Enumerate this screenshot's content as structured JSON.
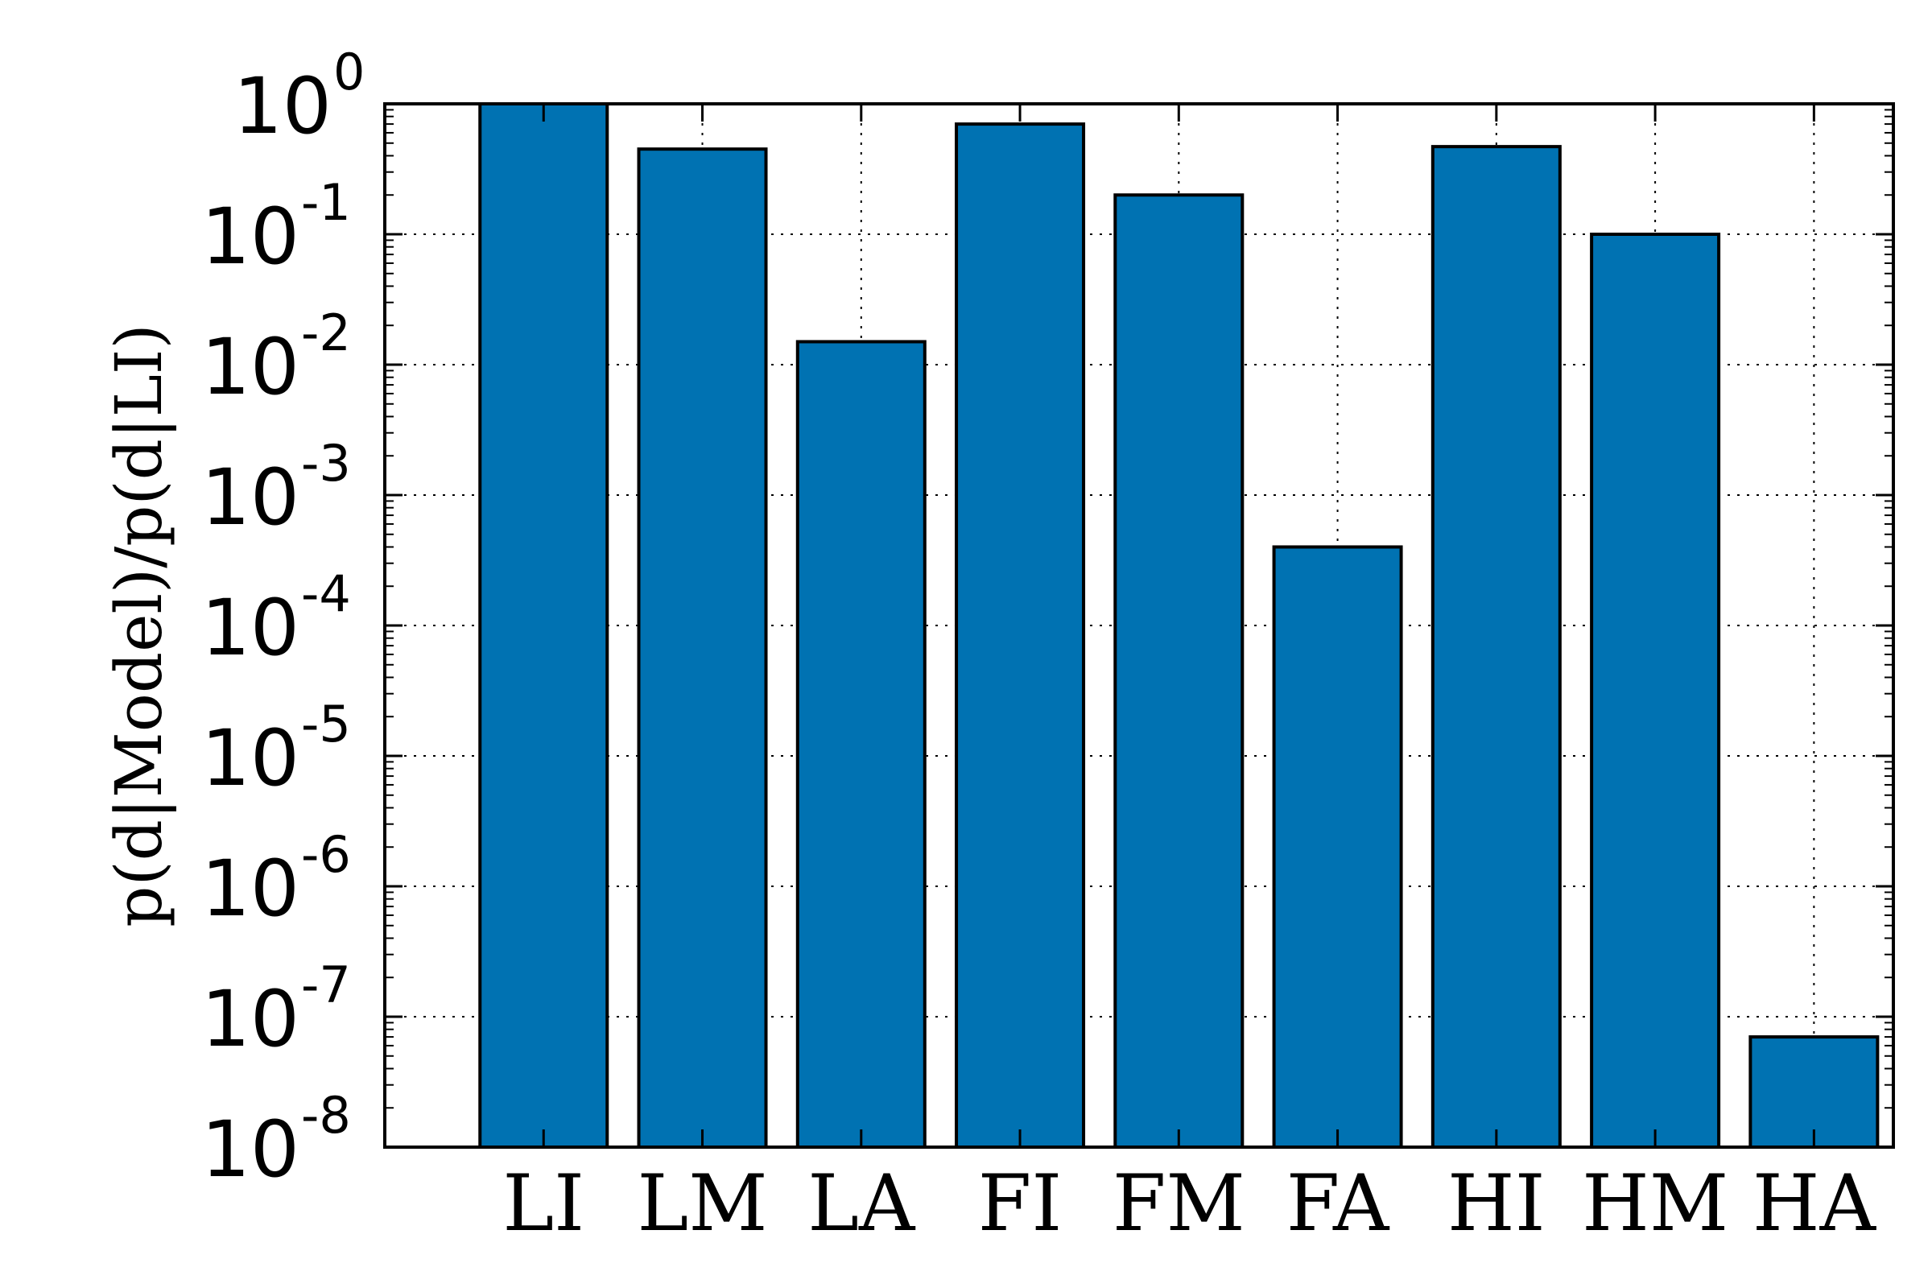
{
  "chart_data": {
    "type": "bar",
    "title": "",
    "xlabel": "",
    "ylabel": "p(d|Model)/p(d|LI)",
    "yscale": "log",
    "ylim": [
      1e-08,
      1
    ],
    "grid": true,
    "categories": [
      "LI",
      "LM",
      "LA",
      "FI",
      "FM",
      "FA",
      "HI",
      "HM",
      "HA"
    ],
    "values": [
      1.0,
      0.45,
      0.015,
      0.7,
      0.2,
      0.0004,
      0.47,
      0.1,
      7e-08
    ],
    "y_ticks": [
      {
        "base": "10",
        "exp": "0"
      },
      {
        "base": "10",
        "exp": "-1"
      },
      {
        "base": "10",
        "exp": "-2"
      },
      {
        "base": "10",
        "exp": "-3"
      },
      {
        "base": "10",
        "exp": "-4"
      },
      {
        "base": "10",
        "exp": "-5"
      },
      {
        "base": "10",
        "exp": "-6"
      },
      {
        "base": "10",
        "exp": "-7"
      },
      {
        "base": "10",
        "exp": "-8"
      }
    ],
    "colors": {
      "bar": "#0072b2",
      "edge": "#000000",
      "grid": "#000000"
    }
  }
}
